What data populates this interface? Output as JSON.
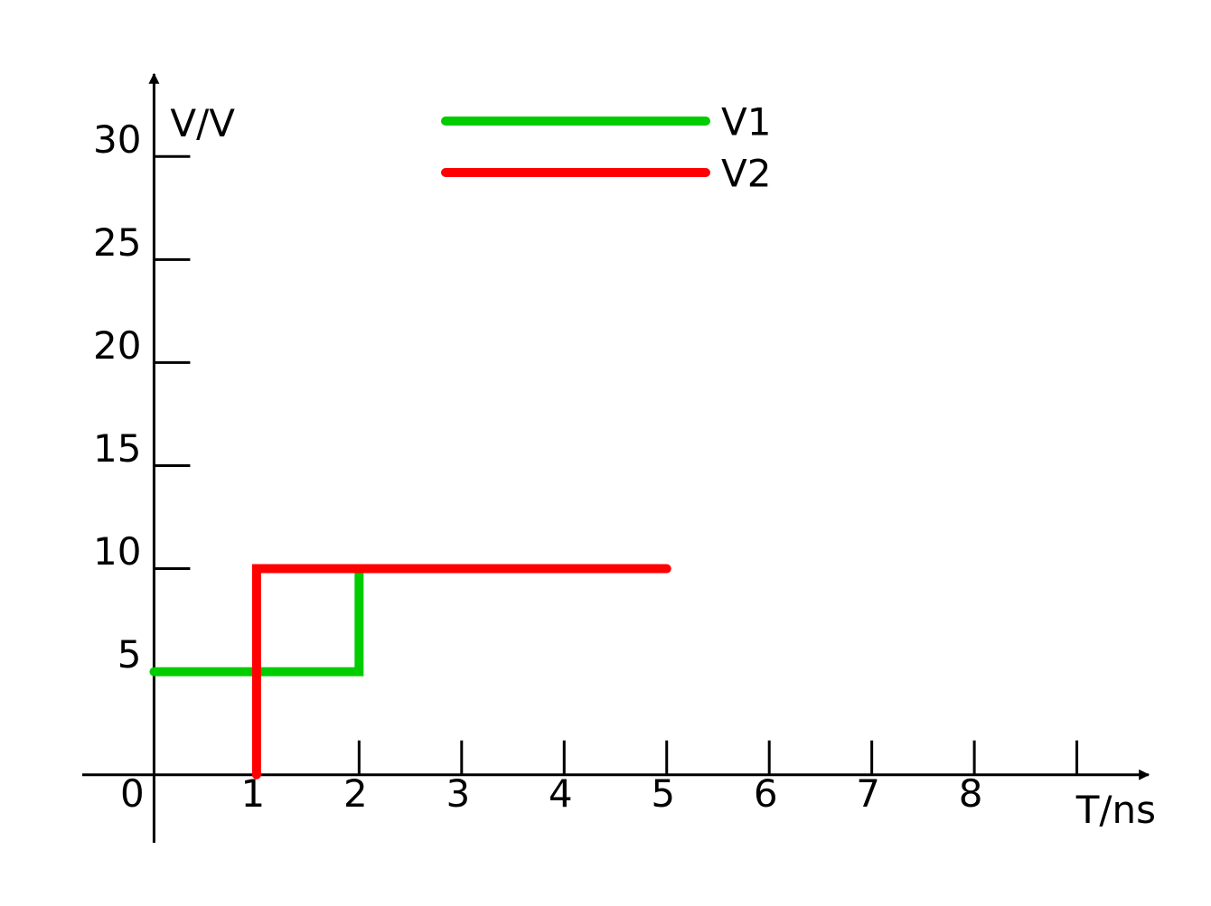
{
  "chart_data": {
    "type": "line",
    "x_label": "T/ns",
    "y_label": "V/V",
    "xlim": [
      -0.7,
      9.7
    ],
    "ylim": [
      -3.3,
      34
    ],
    "xticks": [
      0,
      1,
      2,
      3,
      4,
      5,
      6,
      7,
      8,
      {
        "value": 9,
        "label": null
      }
    ],
    "yticks": [
      5,
      10,
      15,
      20,
      25,
      30
    ],
    "legend": "top",
    "series": [
      {
        "name": "V1",
        "color": "#00cc00",
        "x": [
          0,
          2,
          2
        ],
        "values": [
          5,
          5,
          10
        ]
      },
      {
        "name": "V2",
        "color": "#ff0000",
        "x": [
          1,
          1,
          5
        ],
        "values": [
          0,
          10,
          10
        ]
      }
    ]
  }
}
